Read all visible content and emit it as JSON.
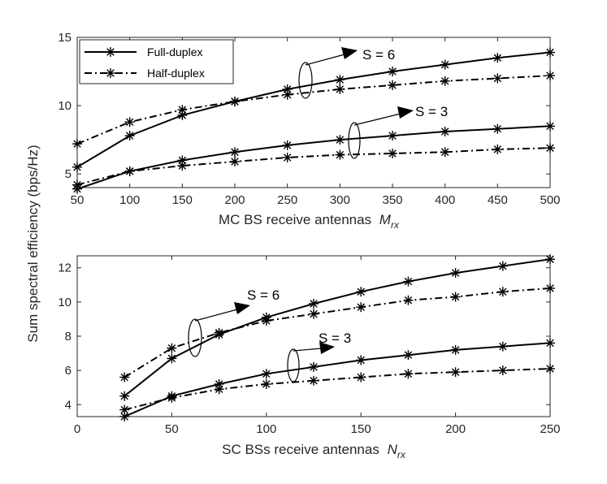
{
  "chart_data": [
    {
      "type": "line",
      "xlabel": "MC BS receive antennas",
      "xlabel_symbol": "M",
      "xlabel_sub": "rx",
      "ylabel": "Sum spectral efficiency (bps/Hz)",
      "xlim": [
        50,
        500
      ],
      "ylim": [
        4,
        15
      ],
      "xticks": [
        50,
        100,
        150,
        200,
        250,
        300,
        350,
        400,
        450,
        500
      ],
      "yticks": [
        5,
        10,
        15
      ],
      "x": [
        50,
        100,
        150,
        200,
        250,
        300,
        350,
        400,
        450,
        500
      ],
      "series": [
        {
          "name": "Full-duplex",
          "group": "S = 6",
          "style": "solid",
          "values": [
            5.5,
            7.8,
            9.3,
            10.3,
            11.2,
            11.9,
            12.5,
            13.0,
            13.5,
            13.9
          ]
        },
        {
          "name": "Half-duplex",
          "group": "S = 6",
          "style": "dashdot",
          "values": [
            7.2,
            8.8,
            9.7,
            10.3,
            10.8,
            11.2,
            11.5,
            11.8,
            12.0,
            12.2
          ]
        },
        {
          "name": "Full-duplex",
          "group": "S = 3",
          "style": "solid",
          "values": [
            3.9,
            5.2,
            6.0,
            6.6,
            7.1,
            7.5,
            7.8,
            8.1,
            8.3,
            8.5
          ]
        },
        {
          "name": "Half-duplex",
          "group": "S = 3",
          "style": "dashdot",
          "values": [
            4.2,
            5.2,
            5.6,
            5.9,
            6.2,
            6.4,
            6.5,
            6.6,
            6.8,
            6.9
          ]
        }
      ],
      "legend": [
        "Full-duplex",
        "Half-duplex"
      ],
      "annotations": [
        "S = 6",
        "S = 3"
      ]
    },
    {
      "type": "line",
      "xlabel": "SC BSs receive antennas",
      "xlabel_symbol": "N",
      "xlabel_sub": "rx",
      "ylabel": "Sum spectral efficiency (bps/Hz)",
      "xlim": [
        0,
        250
      ],
      "ylim": [
        3.3,
        12.7
      ],
      "xticks": [
        0,
        50,
        100,
        150,
        200,
        250
      ],
      "yticks": [
        4,
        6,
        8,
        10,
        12
      ],
      "x": [
        25,
        50,
        75,
        100,
        125,
        150,
        175,
        200,
        225,
        250
      ],
      "series": [
        {
          "name": "Full-duplex",
          "group": "S = 6",
          "style": "solid",
          "values": [
            4.5,
            6.7,
            8.1,
            9.1,
            9.9,
            10.6,
            11.2,
            11.7,
            12.1,
            12.5
          ]
        },
        {
          "name": "Half-duplex",
          "group": "S = 6",
          "style": "dashdot",
          "values": [
            5.6,
            7.3,
            8.2,
            8.9,
            9.3,
            9.7,
            10.1,
            10.3,
            10.6,
            10.8
          ]
        },
        {
          "name": "Full-duplex",
          "group": "S = 3",
          "style": "solid",
          "values": [
            3.3,
            4.5,
            5.2,
            5.8,
            6.2,
            6.6,
            6.9,
            7.2,
            7.4,
            7.6
          ]
        },
        {
          "name": "Half-duplex",
          "group": "S = 3",
          "style": "dashdot",
          "values": [
            3.7,
            4.4,
            4.9,
            5.2,
            5.4,
            5.6,
            5.8,
            5.9,
            6.0,
            6.1
          ]
        }
      ],
      "annotations": [
        "S = 6",
        "S = 3"
      ]
    }
  ]
}
